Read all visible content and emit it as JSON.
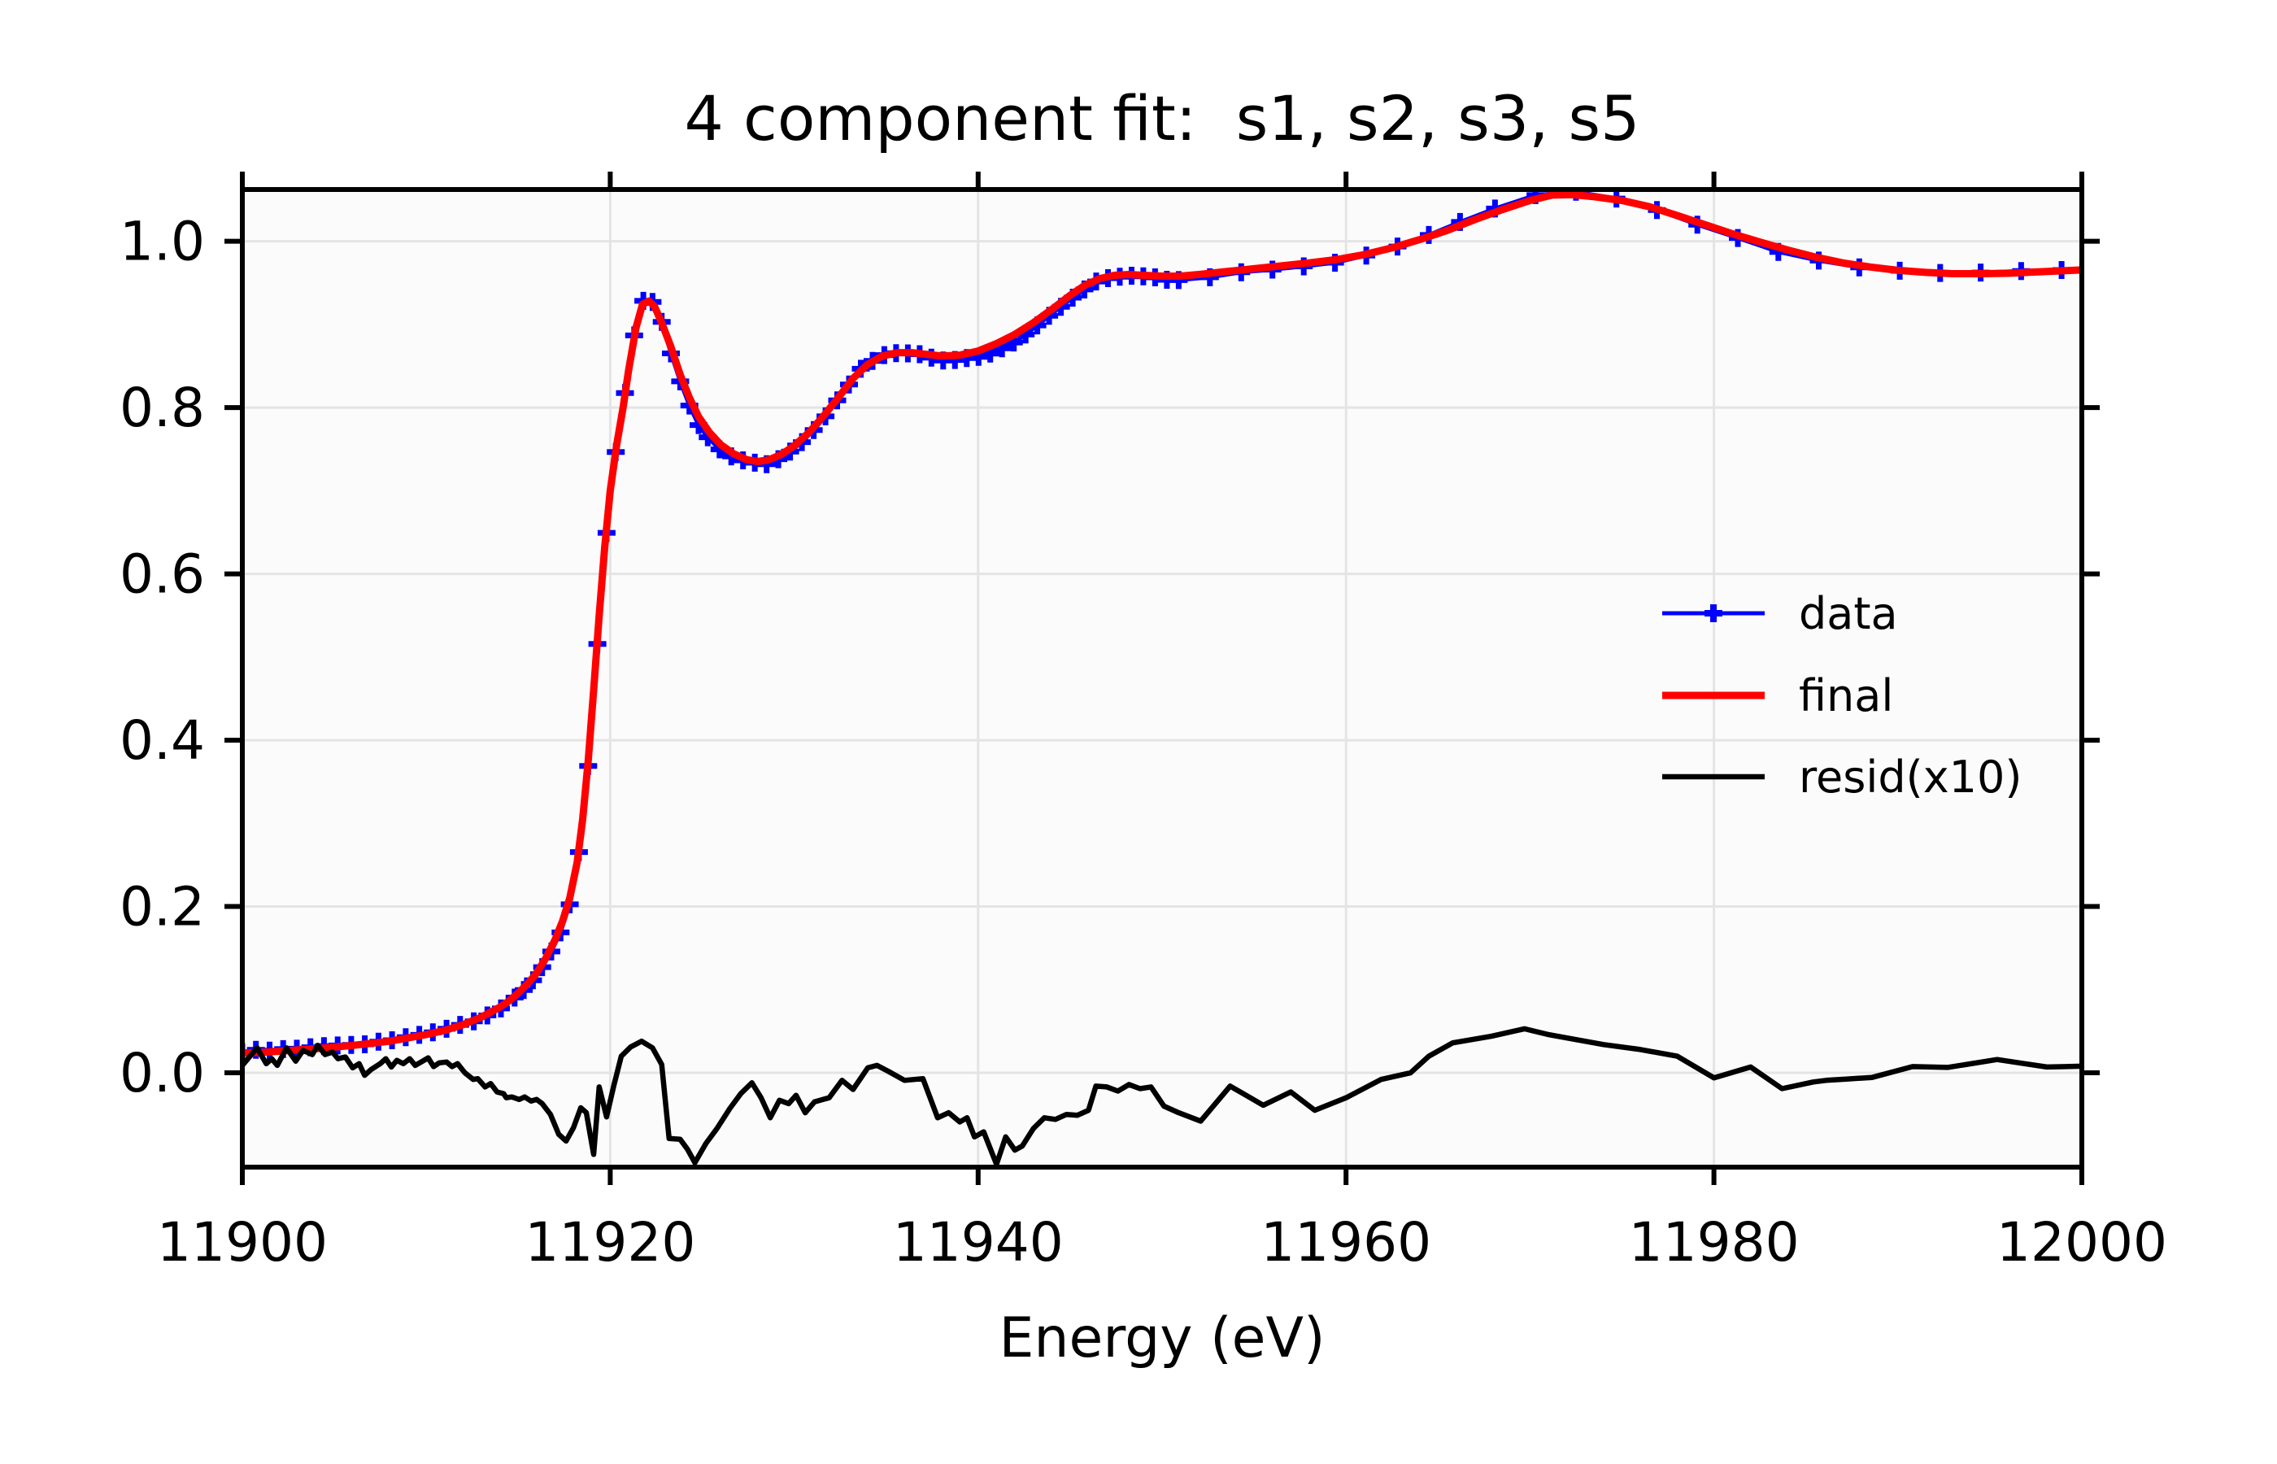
{
  "chart_data": {
    "type": "line",
    "title": "4 component fit:  s1, s2, s3, s5",
    "xlabel": "Energy (eV)",
    "ylabel": "",
    "xlim": [
      11900,
      12000
    ],
    "ylim": [
      -0.1134,
      1.0622
    ],
    "xticks": [
      11900,
      11920,
      11940,
      11960,
      11980,
      12000
    ],
    "xtick_labels": [
      "11900",
      "11920",
      "11940",
      "11960",
      "11980",
      "12000"
    ],
    "yticks": [
      0.0,
      0.2,
      0.4,
      0.6,
      0.8,
      1.0
    ],
    "ytick_labels": [
      "0.0",
      "0.2",
      "0.4",
      "0.6",
      "0.8",
      "1.0"
    ],
    "grid": true,
    "grid_color": "#e4e4e4",
    "background_color": "#fbfbfb",
    "spine_color": "#000000",
    "legend_position": "center right",
    "series": [
      {
        "name": "data",
        "label": "data",
        "color": "#0000ff",
        "marker": "plus",
        "line_width": 5,
        "x": [
          11900,
          11900.74,
          11901.48,
          11902.22,
          11902.96,
          11903.7,
          11904.44,
          11905.18,
          11905.92,
          11906.66,
          11907.4,
          11908.14,
          11908.88,
          11909.62,
          11910.36,
          11911.1,
          11911.84,
          11912.58,
          11913.32,
          11914.06,
          11914.8,
          11915.3,
          11915.8,
          11916.3,
          11916.8,
          11917.3,
          11917.8,
          11918.3,
          11918.8,
          11919.3,
          11919.8,
          11920.3,
          11920.8,
          11921.3,
          11921.8,
          11922.3,
          11922.8,
          11923.3,
          11923.8,
          11924.3,
          11924.8,
          11925.3,
          11925.94,
          11926.58,
          11927.22,
          11927.86,
          11928.5,
          11929.14,
          11929.78,
          11930.42,
          11931.06,
          11931.7,
          11932.34,
          11932.98,
          11933.62,
          11934.26,
          11934.9,
          11935.54,
          11936.18,
          11936.82,
          11937.46,
          11938.1,
          11938.74,
          11939.38,
          11940.02,
          11940.66,
          11941.3,
          11941.94,
          11942.58,
          11943.22,
          11943.86,
          11944.5,
          11945.14,
          11945.78,
          11946.42,
          11947.06,
          11947.7,
          11948.34,
          11948.98,
          11949.62,
          11950.26,
          11950.9,
          11952.6,
          11954.3,
          11956.0,
          11957.7,
          11959.4,
          11961.1,
          11962.8,
          11964.5,
          11966.2,
          11968.1,
          11970.3,
          11972.5,
          11974.7,
          11976.9,
          11979.1,
          11981.3,
          11983.5,
          11985.7,
          11987.9,
          11990.1,
          11992.3,
          11994.5,
          11996.7,
          11998.9
        ],
        "y": [
          0.0249,
          0.0276,
          0.0268,
          0.0285,
          0.029,
          0.0308,
          0.0321,
          0.0329,
          0.0336,
          0.0343,
          0.0375,
          0.0392,
          0.0428,
          0.0456,
          0.0487,
          0.053,
          0.0577,
          0.062,
          0.069,
          0.0774,
          0.0905,
          0.0996,
          0.1114,
          0.1271,
          0.1459,
          0.1689,
          0.2026,
          0.2655,
          0.369,
          0.5157,
          0.6494,
          0.7466,
          0.8174,
          0.8867,
          0.9283,
          0.927,
          0.903,
          0.8651,
          0.8315,
          0.8024,
          0.779,
          0.7643,
          0.7497,
          0.7413,
          0.7365,
          0.7337,
          0.7318,
          0.7379,
          0.747,
          0.7584,
          0.773,
          0.7894,
          0.8087,
          0.8277,
          0.8466,
          0.8561,
          0.8631,
          0.8654,
          0.8651,
          0.8641,
          0.8599,
          0.8566,
          0.8572,
          0.8595,
          0.8609,
          0.8648,
          0.8713,
          0.8782,
          0.8879,
          0.8988,
          0.9103,
          0.9212,
          0.9321,
          0.942,
          0.9516,
          0.9556,
          0.9573,
          0.9585,
          0.9577,
          0.9566,
          0.9536,
          0.9532,
          0.9567,
          0.9627,
          0.9659,
          0.9698,
          0.9742,
          0.9828,
          0.9936,
          1.0075,
          1.0232,
          1.0393,
          1.0555,
          1.0595,
          1.0513,
          1.0375,
          1.0199,
          1.0039,
          0.9872,
          0.9767,
          0.9686,
          0.9645,
          0.9619,
          0.9623,
          0.9641,
          0.9654
        ]
      },
      {
        "name": "final",
        "label": "final",
        "color": "#ff0000",
        "marker": "none",
        "line_width": 9,
        "x": [
          11900,
          11901,
          11902,
          11903,
          11904,
          11905,
          11906,
          11907,
          11908,
          11909,
          11910,
          11911,
          11912,
          11913,
          11914,
          11914.5,
          11915,
          11915.5,
          11916,
          11916.5,
          11917,
          11917.4,
          11917.8,
          11918.2,
          11918.5,
          11918.8,
          11919.1,
          11919.4,
          11919.7,
          11920,
          11920.35,
          11920.7,
          11921,
          11921.4,
          11921.75,
          11922.1,
          11922.4,
          11922.8,
          11923.3,
          11923.8,
          11924.3,
          11924.8,
          11925.4,
          11926,
          11926.7,
          11927.4,
          11928,
          11928.6,
          11929.3,
          11930,
          11930.8,
          11931.6,
          11932.4,
          11933.2,
          11934,
          11934.8,
          11935.6,
          11936.4,
          11937.2,
          11938,
          11939,
          11940,
          11941,
          11942,
          11943,
          11944,
          11945,
          11945.8,
          11946.6,
          11947.4,
          11948.2,
          11949,
          11950,
          11951,
          11952,
          11953.5,
          11955,
          11956.5,
          11958,
          11959.5,
          11961,
          11962.5,
          11964,
          11965.5,
          11967,
          11968.5,
          11970,
          11971.2,
          11972.3,
          11973.5,
          11975,
          11976.5,
          11978,
          11979.5,
          11981,
          11982.5,
          11984,
          11985.5,
          11987,
          11988.5,
          11990,
          11991.5,
          11993,
          11994.5,
          11996,
          11997.5,
          11999,
          12000
        ],
        "y": [
          0.024,
          0.0245,
          0.026,
          0.0275,
          0.029,
          0.031,
          0.033,
          0.0355,
          0.038,
          0.042,
          0.046,
          0.051,
          0.058,
          0.067,
          0.079,
          0.0865,
          0.096,
          0.107,
          0.12,
          0.138,
          0.16,
          0.182,
          0.21,
          0.253,
          0.305,
          0.375,
          0.46,
          0.55,
          0.632,
          0.7,
          0.755,
          0.8,
          0.845,
          0.896,
          0.924,
          0.928,
          0.922,
          0.902,
          0.873,
          0.8395,
          0.812,
          0.789,
          0.77,
          0.7555,
          0.7445,
          0.7375,
          0.735,
          0.737,
          0.7435,
          0.754,
          0.77,
          0.79,
          0.812,
          0.835,
          0.852,
          0.862,
          0.866,
          0.866,
          0.864,
          0.862,
          0.863,
          0.868,
          0.877,
          0.888,
          0.902,
          0.918,
          0.935,
          0.947,
          0.955,
          0.959,
          0.96,
          0.959,
          0.958,
          0.958,
          0.96,
          0.9635,
          0.967,
          0.9705,
          0.974,
          0.978,
          0.984,
          0.992,
          1.002,
          1.013,
          1.026,
          1.038,
          1.049,
          1.0555,
          1.056,
          1.0535,
          1.049,
          1.0415,
          1.031,
          1.02,
          1.009,
          0.999,
          0.9895,
          0.981,
          0.974,
          0.969,
          0.965,
          0.9625,
          0.961,
          0.961,
          0.9615,
          0.963,
          0.9645,
          0.9655
        ]
      },
      {
        "name": "resid",
        "label": "resid(x10)",
        "color": "#000000",
        "marker": "none",
        "line_width": 6.5,
        "x": [
          11900,
          11900.8,
          11901.3,
          11901.6,
          11901.9,
          11902.4,
          11902.9,
          11903.3,
          11903.8,
          11904.1,
          11904.5,
          11904.9,
          11905.2,
          11905.6,
          11906.0,
          11906.35,
          11906.65,
          11907.0,
          11907.5,
          11907.8,
          11908.1,
          11908.4,
          11908.75,
          11909.1,
          11909.4,
          11909.8,
          11910.1,
          11910.4,
          11910.7,
          11911.1,
          11911.4,
          11911.7,
          11912.1,
          11912.55,
          11912.8,
          11913.2,
          11913.5,
          11913.85,
          11914.2,
          11914.35,
          11914.65,
          11915.05,
          11915.35,
          11915.7,
          11916.0,
          11916.3,
          11916.75,
          11917.2,
          11917.6,
          11918.0,
          11918.4,
          11918.7,
          11919.1,
          11919.4,
          11919.8,
          11920.2,
          11920.6,
          11921.1,
          11921.7,
          11922.3,
          11922.8,
          11923.2,
          11923.8,
          11924.2,
          11924.6,
          11925.2,
          11925.8,
          11926.5,
          11927.1,
          11927.7,
          11928.2,
          11928.7,
          11929.2,
          11929.7,
          11930.1,
          11930.6,
          11931.1,
          11931.9,
          11932.6,
          11933.2,
          11934.0,
          11934.5,
          11935.1,
          11936.0,
          11937.0,
          11937.8,
          11938.4,
          11939.0,
          11939.4,
          11939.8,
          11940.3,
          11941.0,
          11941.5,
          11942.0,
          11942.4,
          11943.0,
          11943.6,
          11944.2,
          11944.8,
          11945.4,
          11946.0,
          11946.4,
          11947.0,
          11947.6,
          11948.2,
          11948.8,
          11949.4,
          11950.1,
          11950.9,
          11952.1,
          11953.7,
          11955.5,
          11957.0,
          11958.3,
          11960.0,
          11961.9,
          11963.5,
          11964.5,
          11965.8,
          11967.9,
          11969.7,
          11971.0,
          11972.5,
          11974.0,
          11976.0,
          11978.0,
          11980.0,
          11982.0,
          11983.7,
          11985.4,
          11986.1,
          11987.2,
          11988.6,
          11990.8,
          11992.7,
          11995.4,
          11996.6,
          11998.1,
          12000.0
        ],
        "y": [
          0.009,
          0.03,
          0.011,
          0.017,
          0.009,
          0.03,
          0.014,
          0.027,
          0.022,
          0.033,
          0.022,
          0.025,
          0.017,
          0.019,
          0.006,
          0.011,
          -0.003,
          0.004,
          0.011,
          0.017,
          0.007,
          0.015,
          0.011,
          0.017,
          0.009,
          0.014,
          0.018,
          0.0075,
          0.012,
          0.013,
          0.0075,
          0.011,
          0.0,
          -0.008,
          -0.007,
          -0.017,
          -0.013,
          -0.023,
          -0.025,
          -0.03,
          -0.029,
          -0.032,
          -0.029,
          -0.034,
          -0.032,
          -0.037,
          -0.05,
          -0.074,
          -0.082,
          -0.066,
          -0.042,
          -0.048,
          -0.098,
          -0.017,
          -0.053,
          -0.015,
          0.02,
          0.031,
          0.038,
          0.03,
          0.01,
          -0.079,
          -0.08,
          -0.092,
          -0.108,
          -0.085,
          -0.067,
          -0.043,
          -0.025,
          -0.012,
          -0.03,
          -0.054,
          -0.033,
          -0.037,
          -0.027,
          -0.048,
          -0.035,
          -0.03,
          -0.009,
          -0.02,
          0.006,
          0.009,
          0.002,
          -0.009,
          -0.007,
          -0.054,
          -0.048,
          -0.059,
          -0.054,
          -0.077,
          -0.071,
          -0.11,
          -0.077,
          -0.093,
          -0.088,
          -0.067,
          -0.054,
          -0.056,
          -0.05,
          -0.051,
          -0.045,
          -0.016,
          -0.017,
          -0.022,
          -0.014,
          -0.019,
          -0.017,
          -0.04,
          -0.048,
          -0.058,
          -0.016,
          -0.039,
          -0.023,
          -0.045,
          -0.03,
          -0.008,
          0.0,
          0.02,
          0.036,
          0.044,
          0.053,
          0.046,
          0.04,
          0.034,
          0.028,
          0.02,
          -0.006,
          0.007,
          -0.019,
          -0.011,
          -0.009,
          -0.0075,
          -0.0055,
          0.0075,
          0.0065,
          0.016,
          0.012,
          0.007,
          0.008
        ]
      }
    ]
  }
}
